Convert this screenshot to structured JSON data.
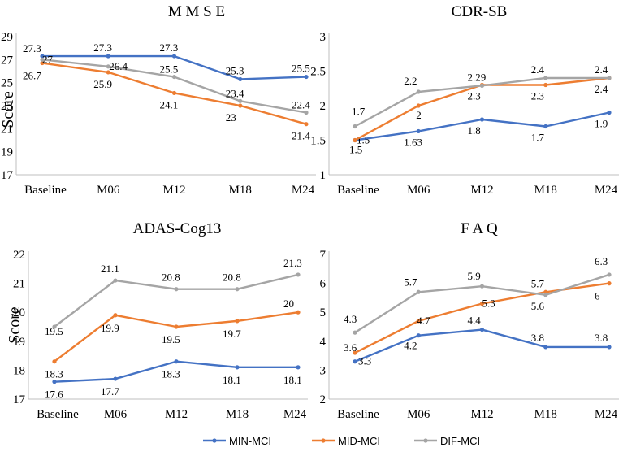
{
  "colors": {
    "MIN-MCI": "#4472C4",
    "MID-MCI": "#ED7D31",
    "DIF-MCI": "#A5A5A5"
  },
  "legend": [
    "MIN-MCI",
    "MID-MCI",
    "DIF-MCI"
  ],
  "chart_data": [
    {
      "type": "line",
      "title": "M M S E",
      "ylabel": "Score",
      "categories": [
        "Baseline",
        "M06",
        "M12",
        "M18",
        "M24"
      ],
      "ylim": [
        17,
        29
      ],
      "yticks": [
        "17",
        "19",
        "21",
        "23",
        "25",
        "27",
        "29"
      ],
      "series": [
        {
          "name": "MIN-MCI",
          "values": [
            27.3,
            27.3,
            27.3,
            25.3,
            25.5
          ],
          "labels": [
            "27.3",
            "27.3",
            "27.3",
            "25.3",
            "25.5"
          ]
        },
        {
          "name": "MID-MCI",
          "values": [
            26.7,
            25.9,
            24.1,
            23.0,
            21.4
          ],
          "labels": [
            "26.7",
            "25.9",
            "24.1",
            "23",
            "21.4"
          ]
        },
        {
          "name": "DIF-MCI",
          "values": [
            27.0,
            26.4,
            25.5,
            23.4,
            22.4
          ],
          "labels": [
            "27",
            "26.4",
            "25.5",
            "23.4",
            "22.4"
          ]
        }
      ]
    },
    {
      "type": "line",
      "title": "CDR-SB",
      "ylabel": "",
      "categories": [
        "Baseline",
        "M06",
        "M12",
        "M18",
        "M24"
      ],
      "ylim": [
        1,
        3
      ],
      "yticks": [
        "1",
        "1.5",
        "2",
        "2.5",
        "3"
      ],
      "series": [
        {
          "name": "MIN-MCI",
          "values": [
            1.5,
            1.63,
            1.8,
            1.7,
            1.9
          ],
          "labels": [
            "1.5",
            "1.63",
            "1.8",
            "1.7",
            "1.9"
          ]
        },
        {
          "name": "MID-MCI",
          "values": [
            1.5,
            2.0,
            2.3,
            2.3,
            2.4
          ],
          "labels": [
            "1.5",
            "2",
            "2.3",
            "2.3",
            "2.4"
          ]
        },
        {
          "name": "DIF-MCI",
          "values": [
            1.7,
            2.2,
            2.29,
            2.4,
            2.4
          ],
          "labels": [
            "1.7",
            "2.2",
            "2.29",
            "2.4",
            "2.4"
          ]
        }
      ]
    },
    {
      "type": "line",
      "title": "ADAS-Cog13",
      "ylabel": "Score",
      "categories": [
        "Baseline",
        "M06",
        "M12",
        "M18",
        "M24"
      ],
      "ylim": [
        17,
        22
      ],
      "yticks": [
        "17",
        "18",
        "19",
        "20",
        "21",
        "22"
      ],
      "series": [
        {
          "name": "MIN-MCI",
          "values": [
            17.6,
            17.7,
            18.3,
            18.1,
            18.1
          ],
          "labels": [
            "17.6",
            "17.7",
            "18.3",
            "18.1",
            "18.1"
          ]
        },
        {
          "name": "MID-MCI",
          "values": [
            18.3,
            19.9,
            19.5,
            19.7,
            20.0
          ],
          "labels": [
            "18.3",
            "19.9",
            "19.5",
            "19.7",
            "20"
          ]
        },
        {
          "name": "DIF-MCI",
          "values": [
            19.5,
            21.1,
            20.8,
            20.8,
            21.3
          ],
          "labels": [
            "19.5",
            "21.1",
            "20.8",
            "20.8",
            "21.3"
          ]
        }
      ]
    },
    {
      "type": "line",
      "title": "F A Q",
      "ylabel": "",
      "categories": [
        "Baseline",
        "M06",
        "M12",
        "M18",
        "M24"
      ],
      "ylim": [
        2,
        7
      ],
      "yticks": [
        "2",
        "3",
        "4",
        "5",
        "6",
        "7"
      ],
      "series": [
        {
          "name": "MIN-MCI",
          "values": [
            3.3,
            4.2,
            4.4,
            3.8,
            3.8
          ],
          "labels": [
            "3.3",
            "4.2",
            "4.4",
            "3.8",
            "3.8"
          ]
        },
        {
          "name": "MID-MCI",
          "values": [
            3.6,
            4.7,
            5.3,
            5.7,
            6.0
          ],
          "labels": [
            "3.6",
            "4.7",
            "5.3",
            "5.7",
            "6"
          ]
        },
        {
          "name": "DIF-MCI",
          "values": [
            4.3,
            5.7,
            5.9,
            5.6,
            6.3
          ],
          "labels": [
            "4.3",
            "5.7",
            "5.9",
            "5.6",
            "6.3"
          ]
        }
      ]
    }
  ]
}
